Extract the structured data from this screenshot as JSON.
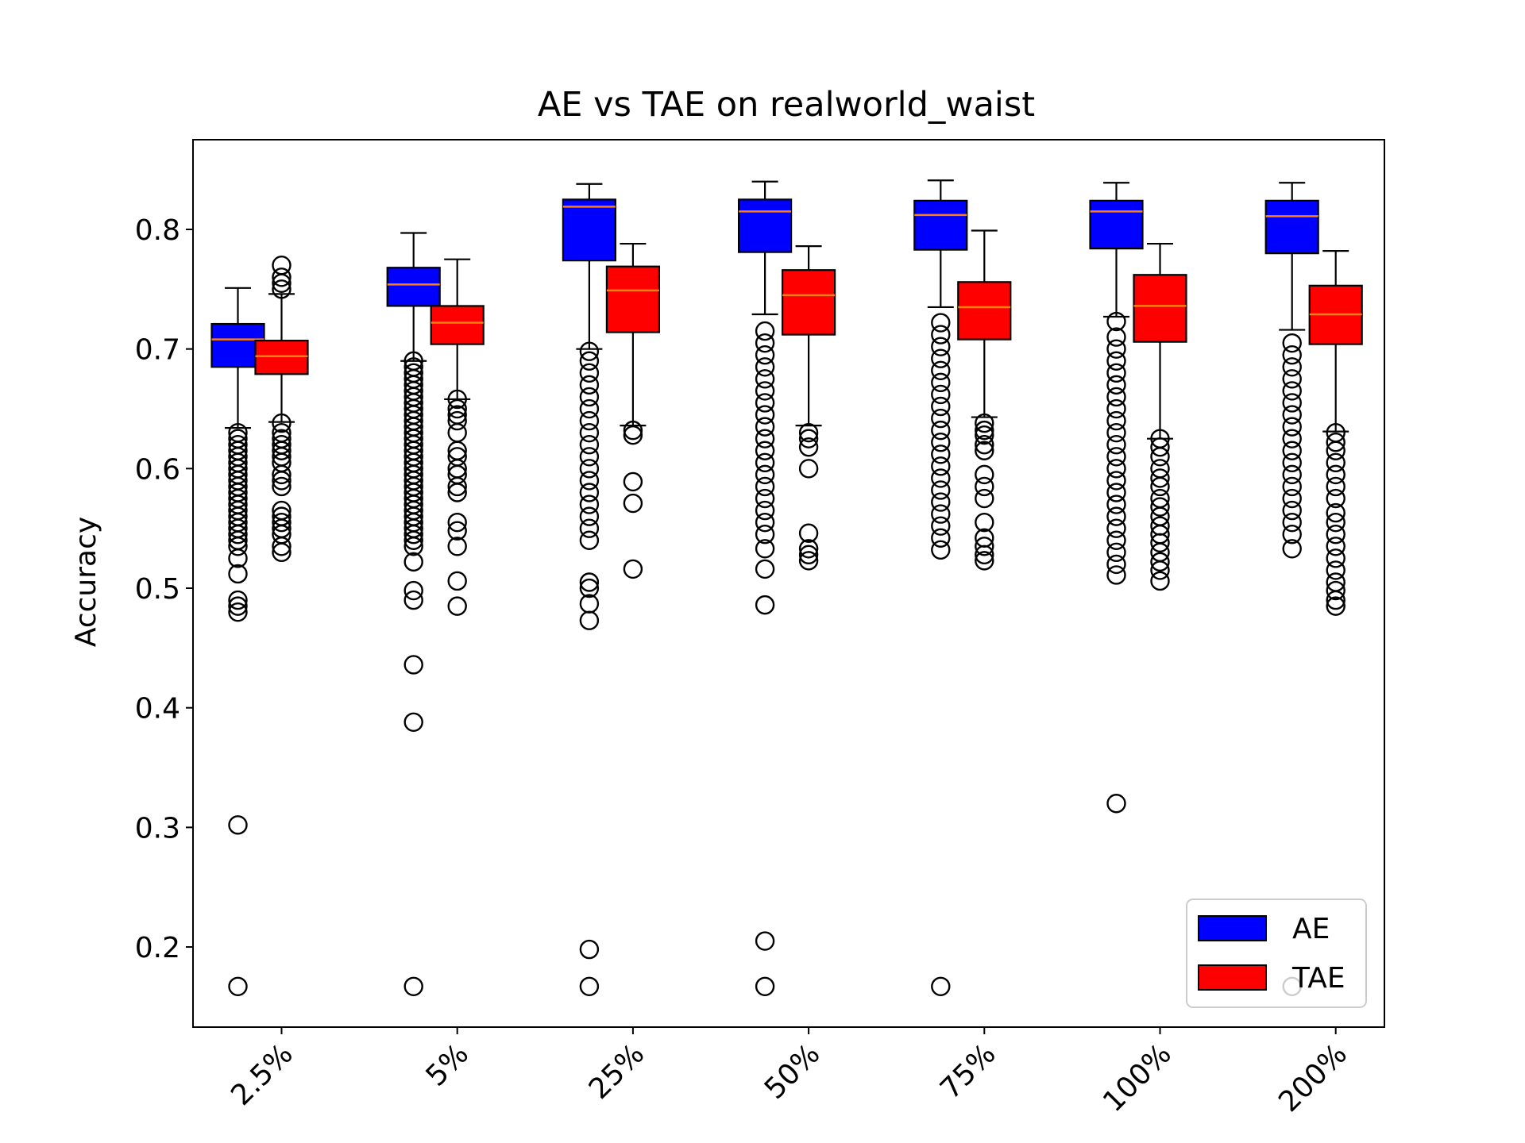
{
  "chart_data": {
    "type": "boxplot",
    "title": "AE vs TAE on realworld_waist",
    "xlabel": "",
    "ylabel": "Accuracy",
    "ylim": [
      0.133,
      0.875
    ],
    "yticks": [
      "0.2",
      "0.3",
      "0.4",
      "0.5",
      "0.6",
      "0.7",
      "0.8"
    ],
    "categories": [
      "2.5%",
      "5%",
      "25%",
      "50%",
      "75%",
      "100%",
      "200%"
    ],
    "legend": {
      "placement": "lower-right",
      "entries": [
        "AE",
        "TAE"
      ]
    },
    "colors": {
      "AE": "#0000ff",
      "TAE": "#ff0000",
      "median": "#ff7f0e"
    },
    "series": [
      {
        "name": "AE",
        "boxes": [
          {
            "category": "2.5%",
            "whislo": 0.634,
            "q1": 0.685,
            "med": 0.708,
            "q3": 0.721,
            "whishi": 0.751,
            "fliers": [
              0.63,
              0.625,
              0.62,
              0.615,
              0.61,
              0.605,
              0.6,
              0.595,
              0.59,
              0.585,
              0.58,
              0.575,
              0.57,
              0.565,
              0.56,
              0.555,
              0.55,
              0.545,
              0.54,
              0.535,
              0.525,
              0.512,
              0.49,
              0.485,
              0.48,
              0.302,
              0.167
            ]
          },
          {
            "category": "5%",
            "whislo": 0.69,
            "q1": 0.736,
            "med": 0.754,
            "q3": 0.768,
            "whishi": 0.797,
            "fliers": [
              0.69,
              0.685,
              0.68,
              0.675,
              0.67,
              0.665,
              0.66,
              0.655,
              0.65,
              0.645,
              0.64,
              0.635,
              0.63,
              0.625,
              0.62,
              0.615,
              0.61,
              0.605,
              0.6,
              0.595,
              0.59,
              0.585,
              0.58,
              0.575,
              0.57,
              0.565,
              0.56,
              0.555,
              0.55,
              0.545,
              0.54,
              0.535,
              0.522,
              0.498,
              0.49,
              0.436,
              0.388,
              0.167
            ]
          },
          {
            "category": "25%",
            "whislo": 0.7,
            "q1": 0.774,
            "med": 0.819,
            "q3": 0.825,
            "whishi": 0.838,
            "fliers": [
              0.698,
              0.69,
              0.68,
              0.67,
              0.66,
              0.65,
              0.64,
              0.63,
              0.62,
              0.61,
              0.6,
              0.59,
              0.58,
              0.57,
              0.56,
              0.55,
              0.54,
              0.505,
              0.5,
              0.487,
              0.473,
              0.198,
              0.167
            ]
          },
          {
            "category": "50%",
            "whislo": 0.729,
            "q1": 0.781,
            "med": 0.815,
            "q3": 0.825,
            "whishi": 0.84,
            "fliers": [
              0.715,
              0.705,
              0.695,
              0.685,
              0.675,
              0.665,
              0.655,
              0.645,
              0.635,
              0.625,
              0.615,
              0.605,
              0.595,
              0.585,
              0.575,
              0.565,
              0.555,
              0.545,
              0.533,
              0.516,
              0.486,
              0.205,
              0.167
            ]
          },
          {
            "category": "75%",
            "whislo": 0.735,
            "q1": 0.783,
            "med": 0.812,
            "q3": 0.824,
            "whishi": 0.841,
            "fliers": [
              0.722,
              0.712,
              0.702,
              0.692,
              0.682,
              0.672,
              0.662,
              0.652,
              0.642,
              0.632,
              0.622,
              0.612,
              0.602,
              0.592,
              0.582,
              0.572,
              0.562,
              0.552,
              0.542,
              0.532,
              0.167
            ]
          },
          {
            "category": "100%",
            "whislo": 0.727,
            "q1": 0.784,
            "med": 0.815,
            "q3": 0.824,
            "whishi": 0.839,
            "fliers": [
              0.723,
              0.71,
              0.7,
              0.69,
              0.68,
              0.67,
              0.66,
              0.65,
              0.64,
              0.63,
              0.62,
              0.61,
              0.6,
              0.59,
              0.58,
              0.57,
              0.56,
              0.55,
              0.54,
              0.53,
              0.52,
              0.511,
              0.32
            ]
          },
          {
            "category": "200%",
            "whislo": 0.716,
            "q1": 0.78,
            "med": 0.811,
            "q3": 0.824,
            "whishi": 0.839,
            "fliers": [
              0.705,
              0.695,
              0.685,
              0.675,
              0.665,
              0.655,
              0.645,
              0.635,
              0.625,
              0.615,
              0.605,
              0.595,
              0.585,
              0.575,
              0.565,
              0.555,
              0.545,
              0.533,
              0.167
            ]
          }
        ]
      },
      {
        "name": "TAE",
        "boxes": [
          {
            "category": "2.5%",
            "whislo": 0.639,
            "q1": 0.679,
            "med": 0.694,
            "q3": 0.707,
            "whishi": 0.746,
            "fliers": [
              0.77,
              0.76,
              0.755,
              0.75,
              0.638,
              0.63,
              0.625,
              0.62,
              0.615,
              0.61,
              0.605,
              0.595,
              0.59,
              0.585,
              0.565,
              0.56,
              0.555,
              0.55,
              0.545,
              0.535,
              0.53
            ]
          },
          {
            "category": "5%",
            "whislo": 0.658,
            "q1": 0.704,
            "med": 0.722,
            "q3": 0.736,
            "whishi": 0.775,
            "fliers": [
              0.658,
              0.65,
              0.645,
              0.64,
              0.63,
              0.615,
              0.61,
              0.6,
              0.595,
              0.585,
              0.58,
              0.555,
              0.548,
              0.535,
              0.506,
              0.485
            ]
          },
          {
            "category": "25%",
            "whislo": 0.636,
            "q1": 0.714,
            "med": 0.749,
            "q3": 0.769,
            "whishi": 0.788,
            "fliers": [
              0.632,
              0.628,
              0.589,
              0.571,
              0.516
            ]
          },
          {
            "category": "50%",
            "whislo": 0.636,
            "q1": 0.712,
            "med": 0.745,
            "q3": 0.766,
            "whishi": 0.786,
            "fliers": [
              0.63,
              0.625,
              0.618,
              0.6,
              0.546,
              0.533,
              0.528,
              0.523
            ]
          },
          {
            "category": "75%",
            "whislo": 0.643,
            "q1": 0.708,
            "med": 0.735,
            "q3": 0.756,
            "whishi": 0.799,
            "fliers": [
              0.638,
              0.632,
              0.628,
              0.62,
              0.615,
              0.595,
              0.585,
              0.575,
              0.555,
              0.542,
              0.535,
              0.528,
              0.523
            ]
          },
          {
            "category": "100%",
            "whislo": 0.625,
            "q1": 0.706,
            "med": 0.736,
            "q3": 0.762,
            "whishi": 0.788,
            "fliers": [
              0.625,
              0.618,
              0.61,
              0.6,
              0.592,
              0.585,
              0.575,
              0.568,
              0.56,
              0.552,
              0.545,
              0.538,
              0.53,
              0.522,
              0.515,
              0.506
            ]
          },
          {
            "category": "200%",
            "whislo": 0.631,
            "q1": 0.704,
            "med": 0.729,
            "q3": 0.753,
            "whishi": 0.782,
            "fliers": [
              0.63,
              0.622,
              0.615,
              0.605,
              0.595,
              0.585,
              0.575,
              0.563,
              0.555,
              0.545,
              0.535,
              0.525,
              0.515,
              0.505,
              0.498,
              0.49,
              0.485
            ]
          }
        ]
      }
    ]
  }
}
